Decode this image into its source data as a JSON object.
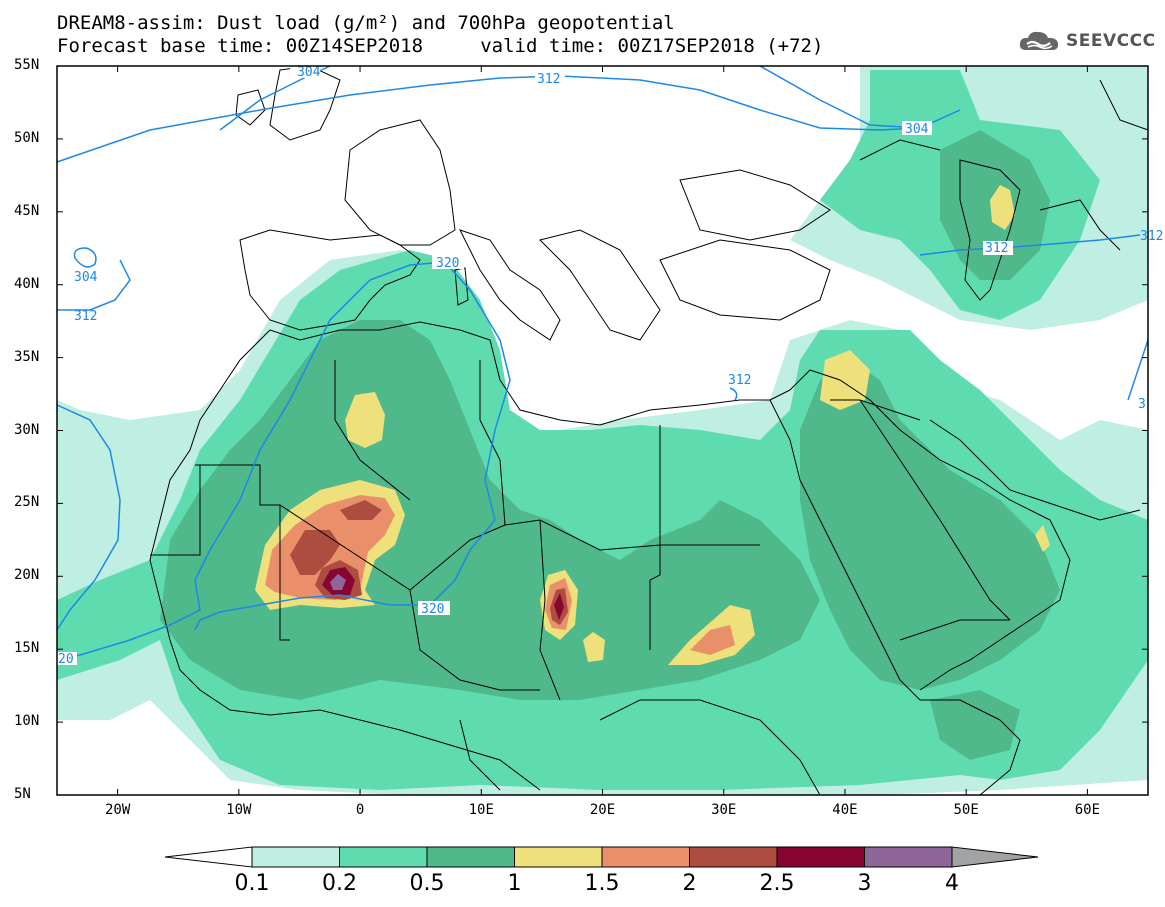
{
  "title": {
    "line1": "DREAM8-assim: Dust load (g/m²) and 700hPa geopotential",
    "line2": "Forecast base time: 00Z14SEP2018     valid time: 00Z17SEP2018 (+72)"
  },
  "logo": {
    "icon": "cloud-icon",
    "text": "SEEVCCC"
  },
  "axes": {
    "y_labels": [
      "55N",
      "50N",
      "45N",
      "40N",
      "35N",
      "30N",
      "25N",
      "20N",
      "15N",
      "10N",
      "5N"
    ],
    "x_labels": [
      "20W",
      "10W",
      "0",
      "10E",
      "20E",
      "30E",
      "40E",
      "50E",
      "60E"
    ],
    "lon_range": [
      -25,
      65
    ],
    "lat_range": [
      5,
      55
    ]
  },
  "contour_labels": [
    "304",
    "312",
    "304",
    "304",
    "312",
    "320",
    "320",
    "312",
    "312",
    "312",
    "20",
    "3"
  ],
  "colorbar": {
    "labels": [
      "0.1",
      "0.2",
      "0.5",
      "1",
      "1.5",
      "2",
      "2.5",
      "3",
      "4"
    ],
    "colors": {
      "below": "#ffffff",
      "c01": "#bfeee3",
      "c02": "#5fdcaf",
      "c05": "#4fb98c",
      "c1": "#eee17c",
      "c15": "#e9906a",
      "c2": "#ad4d3f",
      "c25": "#860631",
      "c3": "#8e6699",
      "above": "#a3a3a3"
    }
  },
  "colors": {
    "contour": "#1e88e5",
    "coast": "#000000"
  }
}
